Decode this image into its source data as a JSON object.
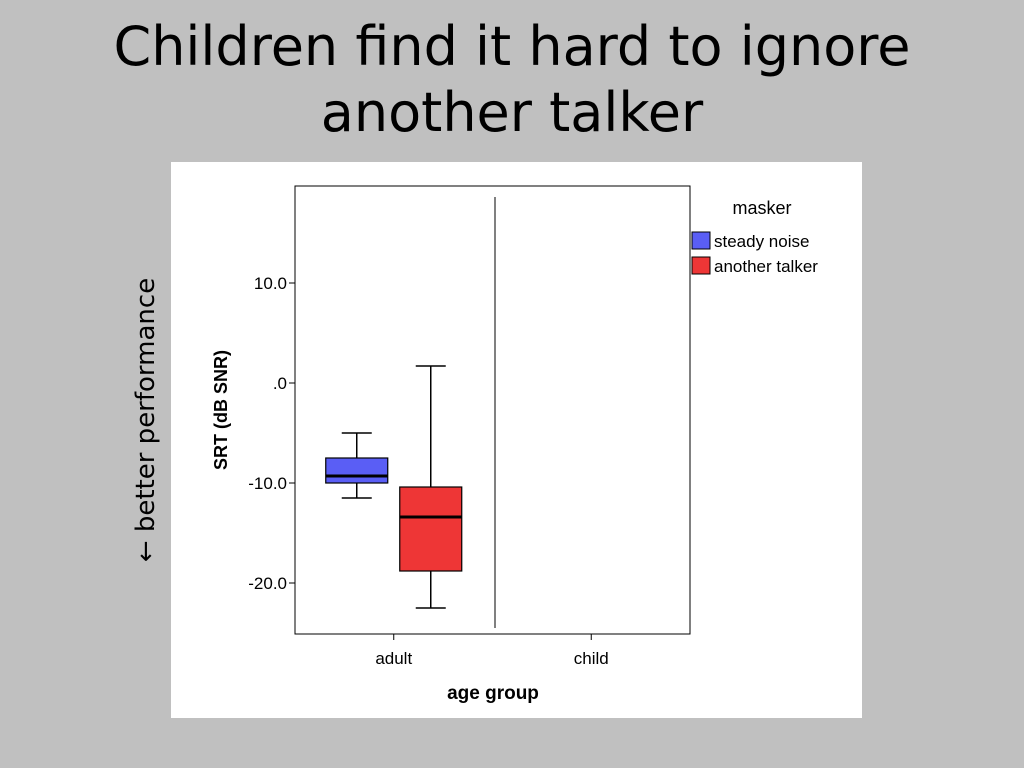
{
  "slide": {
    "title_line1": "Children find it hard to ignore",
    "title_line2": "another talker",
    "side_annotation": "← better performance"
  },
  "chart_data": {
    "type": "boxplot",
    "xlabel": "age group",
    "ylabel": "SRT (dB SNR)",
    "categories": [
      "adult",
      "child"
    ],
    "yticks": [
      10.0,
      0.0,
      -10.0,
      -20.0
    ],
    "ytick_labels": [
      "10.0",
      ".0",
      "-10.0",
      "-20.0"
    ],
    "ylim": [
      -25,
      20
    ],
    "legend_title": "masker",
    "legend_position": "right",
    "series": [
      {
        "name": "steady noise",
        "color": "#5a5ef5",
        "boxes": [
          {
            "category": "adult",
            "min": -11.5,
            "q1": -10.0,
            "median": -9.3,
            "q3": -7.5,
            "max": -5.0
          }
        ]
      },
      {
        "name": "another talker",
        "color": "#ee3636",
        "boxes": [
          {
            "category": "adult",
            "min": -22.5,
            "q1": -18.8,
            "median": -13.4,
            "q3": -10.4,
            "max": 1.7
          }
        ]
      }
    ]
  }
}
